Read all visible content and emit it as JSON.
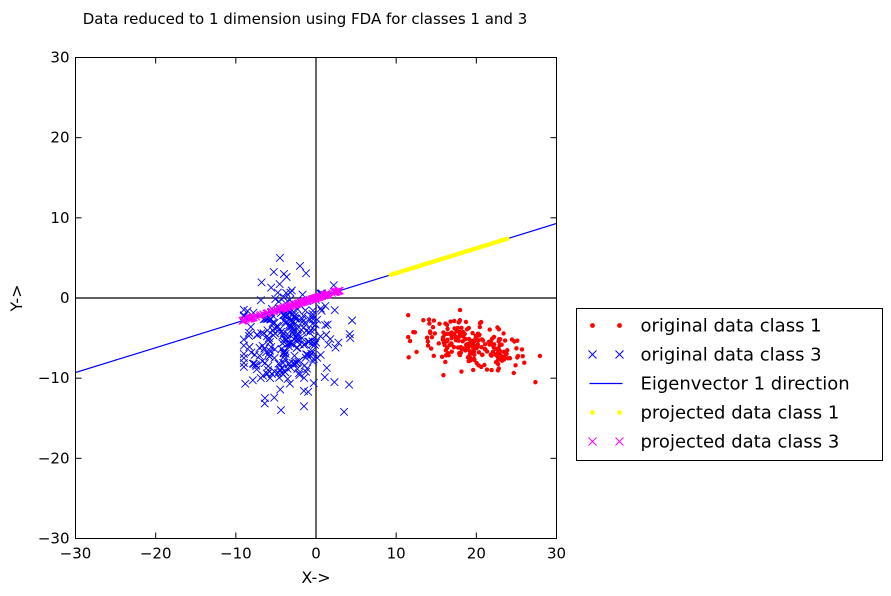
{
  "chart_data": {
    "type": "scatter",
    "title": "Data reduced to 1 dimension using FDA for classes 1 and 3",
    "xlabel": "X->",
    "ylabel": "Y->",
    "xlim": [
      -30,
      30
    ],
    "ylim": [
      -30,
      30
    ],
    "x_ticks": [
      -30,
      -20,
      -10,
      0,
      10,
      20,
      30
    ],
    "y_ticks": [
      -30,
      -20,
      -10,
      0,
      10,
      20,
      30
    ],
    "x_tick_labels": [
      "−30",
      "−20",
      "−10",
      "0",
      "10",
      "20",
      "30"
    ],
    "y_tick_labels": [
      "−30",
      "−20",
      "−10",
      "0",
      "10",
      "20",
      "30"
    ],
    "grid": false,
    "reference_lines": [
      "x = 0",
      "y = 0"
    ],
    "legend_position": "outside-right",
    "series": [
      {
        "name": "original data class 1",
        "marker": "dot",
        "color": "#ff0000",
        "center": [
          19.5,
          -6
        ],
        "spread": [
          3.5,
          1.6
        ],
        "correlation": -0.55,
        "count": 220,
        "extent_x": [
          11.5,
          28.5
        ],
        "extent_y": [
          -10.5,
          -1.5
        ]
      },
      {
        "name": "original data class 3",
        "marker": "x",
        "color": "#0000ff",
        "center": [
          -3.5,
          -5
        ],
        "spread": [
          2.8,
          3.4
        ],
        "correlation": 0.1,
        "count": 260,
        "extent_x": [
          -9,
          4.5
        ],
        "extent_y": [
          -14.5,
          5
        ],
        "outliers": [
          [
            -4.5,
            5
          ],
          [
            -2,
            4
          ],
          [
            -4,
            3
          ],
          [
            3.5,
            -14.2
          ],
          [
            4.5,
            -2.8
          ],
          [
            4.2,
            -4.5
          ],
          [
            -1.5,
            -13.5
          ],
          [
            2.3,
            -10.5
          ]
        ]
      },
      {
        "name": "Eigenvector 1 direction",
        "marker": "line",
        "color": "#0000ff",
        "slope": 0.31,
        "x_range": [
          -30,
          30
        ]
      },
      {
        "name": "projected data class 1",
        "marker": "dot",
        "color": "#ffff00",
        "slope": 0.31,
        "x_range": [
          9.3,
          23.8
        ],
        "count": 110
      },
      {
        "name": "projected data class 3",
        "marker": "x",
        "color": "#ff00ff",
        "slope": 0.31,
        "x_range": [
          -9.2,
          3
        ],
        "count": 130
      }
    ]
  }
}
